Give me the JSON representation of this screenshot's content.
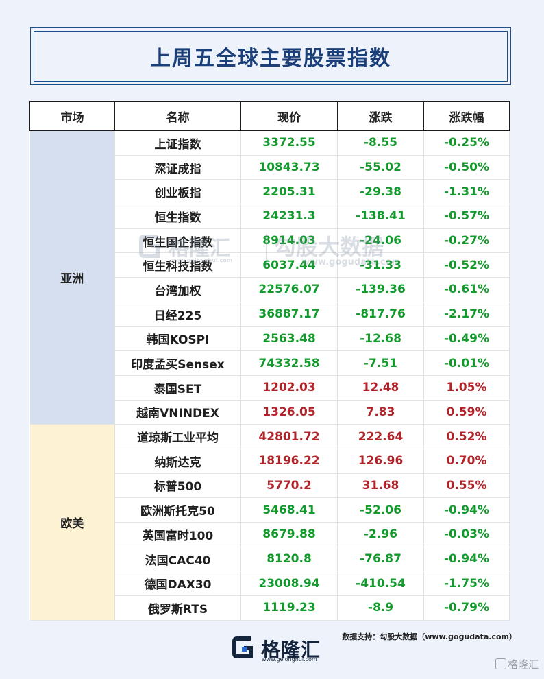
{
  "title": "上周五全球主要股票指数",
  "table": {
    "headers": [
      "市场",
      "名称",
      "现价",
      "涨跌",
      "涨跌幅"
    ],
    "groups": [
      {
        "market": "亚洲",
        "rows": [
          {
            "name": "上证指数",
            "price": "3372.55",
            "change": "-8.55",
            "pct": "-0.25%",
            "dir": "neg"
          },
          {
            "name": "深证成指",
            "price": "10843.73",
            "change": "-55.02",
            "pct": "-0.50%",
            "dir": "neg"
          },
          {
            "name": "创业板指",
            "price": "2205.31",
            "change": "-29.38",
            "pct": "-1.31%",
            "dir": "neg"
          },
          {
            "name": "恒生指数",
            "price": "24231.3",
            "change": "-138.41",
            "pct": "-0.57%",
            "dir": "neg"
          },
          {
            "name": "恒生国企指数",
            "price": "8914.03",
            "change": "-24.06",
            "pct": "-0.27%",
            "dir": "neg"
          },
          {
            "name": "恒生科技指数",
            "price": "6037.44",
            "change": "-31.33",
            "pct": "-0.52%",
            "dir": "neg"
          },
          {
            "name": "台湾加权",
            "price": "22576.07",
            "change": "-139.36",
            "pct": "-0.61%",
            "dir": "neg"
          },
          {
            "name": "日经225",
            "price": "36887.17",
            "change": "-817.76",
            "pct": "-2.17%",
            "dir": "neg"
          },
          {
            "name": "韩国KOSPI",
            "price": "2563.48",
            "change": "-12.68",
            "pct": "-0.49%",
            "dir": "neg"
          },
          {
            "name": "印度孟买Sensex",
            "price": "74332.58",
            "change": "-7.51",
            "pct": "-0.01%",
            "dir": "neg"
          },
          {
            "name": "泰国SET",
            "price": "1202.03",
            "change": "12.48",
            "pct": "1.05%",
            "dir": "pos"
          },
          {
            "name": "越南VNINDEX",
            "price": "1326.05",
            "change": "7.83",
            "pct": "0.59%",
            "dir": "pos"
          }
        ]
      },
      {
        "market": "欧美",
        "rows": [
          {
            "name": "道琼斯工业平均",
            "price": "42801.72",
            "change": "222.64",
            "pct": "0.52%",
            "dir": "pos"
          },
          {
            "name": "纳斯达克",
            "price": "18196.22",
            "change": "126.96",
            "pct": "0.70%",
            "dir": "pos"
          },
          {
            "name": "标普500",
            "price": "5770.2",
            "change": "31.68",
            "pct": "0.55%",
            "dir": "pos"
          },
          {
            "name": "欧洲斯托克50",
            "price": "5468.41",
            "change": "-52.06",
            "pct": "-0.94%",
            "dir": "neg"
          },
          {
            "name": "英国富时100",
            "price": "8679.88",
            "change": "-2.96",
            "pct": "-0.03%",
            "dir": "neg"
          },
          {
            "name": "法国CAC40",
            "price": "8120.8",
            "change": "-76.87",
            "pct": "-0.94%",
            "dir": "neg"
          },
          {
            "name": "德国DAX30",
            "price": "23008.94",
            "change": "-410.54",
            "pct": "-1.75%",
            "dir": "neg"
          },
          {
            "name": "俄罗斯RTS",
            "price": "1119.23",
            "change": "-8.9",
            "pct": "-0.79%",
            "dir": "neg"
          }
        ]
      }
    ]
  },
  "colors": {
    "negative": "#139a2c",
    "positive": "#b3232a",
    "asia_bg": "#d5dff0",
    "euus_bg": "#fdf2d3",
    "title": "#1b3f78"
  },
  "watermark": {
    "brand": "格隆汇",
    "datasource": "勾股大数据",
    "url": "www.gogudata.com",
    "brand_url": "www.gelonghui.com"
  },
  "footer": {
    "source": "数据支持：勾股大数据（www.gogudata.com）",
    "logo_text": "格隆汇",
    "logo_url": "www.gelonghui.com",
    "corner_mark": "格隆汇",
    "logo_icon": "gelonghui-g-icon"
  }
}
